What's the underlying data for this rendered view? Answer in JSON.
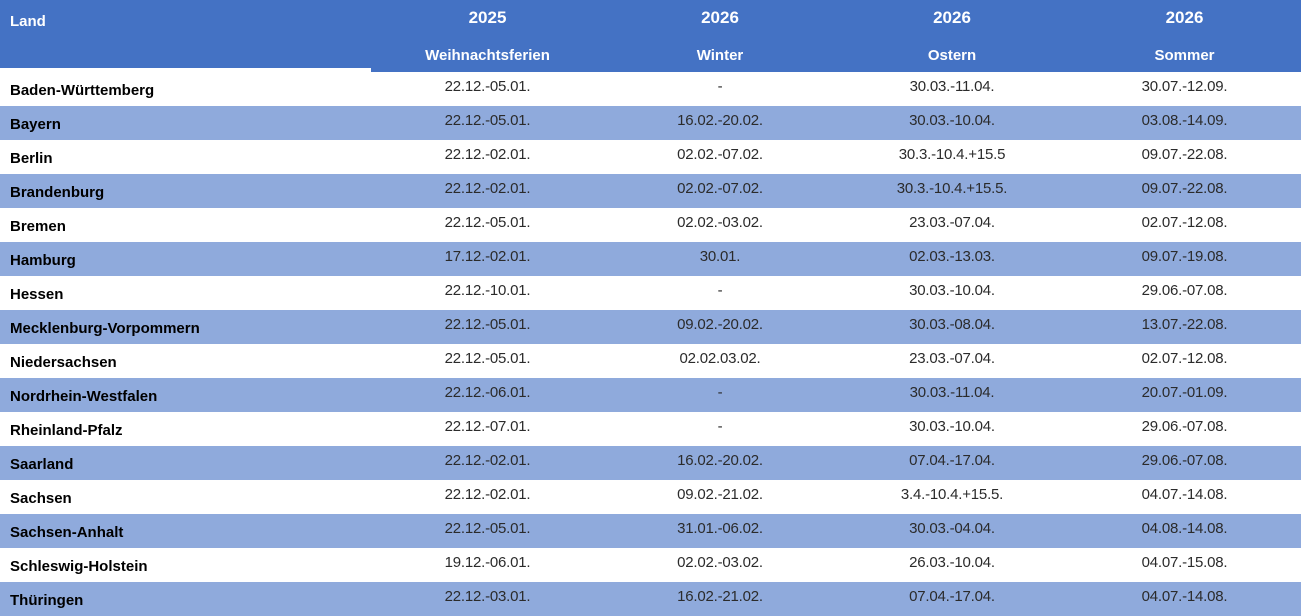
{
  "table": {
    "land_header": "Land",
    "columns": [
      {
        "key": "weihnachtsferien",
        "year": "2025",
        "label": "Weihnachtsferien"
      },
      {
        "key": "winter",
        "year": "2026",
        "label": "Winter"
      },
      {
        "key": "ostern",
        "year": "2026",
        "label": "Ostern"
      },
      {
        "key": "sommer",
        "year": "2026",
        "label": "Sommer"
      }
    ],
    "rows": [
      {
        "land": "Baden-Württemberg",
        "weihnachtsferien": "22.12.-05.01.",
        "winter": "-",
        "ostern": "30.03.-11.04.",
        "sommer": "30.07.-12.09."
      },
      {
        "land": "Bayern",
        "weihnachtsferien": "22.12.-05.01.",
        "winter": "16.02.-20.02.",
        "ostern": "30.03.-10.04.",
        "sommer": "03.08.-14.09."
      },
      {
        "land": "Berlin",
        "weihnachtsferien": "22.12.-02.01.",
        "winter": "02.02.-07.02.",
        "ostern": "30.3.-10.4.+15.5",
        "sommer": "09.07.-22.08."
      },
      {
        "land": "Brandenburg",
        "weihnachtsferien": "22.12.-02.01.",
        "winter": "02.02.-07.02.",
        "ostern": "30.3.-10.4.+15.5.",
        "sommer": "09.07.-22.08."
      },
      {
        "land": "Bremen",
        "weihnachtsferien": "22.12.-05.01.",
        "winter": "02.02.-03.02.",
        "ostern": "23.03.-07.04.",
        "sommer": "02.07.-12.08."
      },
      {
        "land": "Hamburg",
        "weihnachtsferien": "17.12.-02.01.",
        "winter": "30.01.",
        "ostern": "02.03.-13.03.",
        "sommer": "09.07.-19.08."
      },
      {
        "land": "Hessen",
        "weihnachtsferien": "22.12.-10.01.",
        "winter": "-",
        "ostern": "30.03.-10.04.",
        "sommer": "29.06.-07.08."
      },
      {
        "land": "Mecklenburg-Vorpommern",
        "weihnachtsferien": "22.12.-05.01.",
        "winter": "09.02.-20.02.",
        "ostern": "30.03.-08.04.",
        "sommer": "13.07.-22.08."
      },
      {
        "land": "Niedersachsen",
        "weihnachtsferien": "22.12.-05.01.",
        "winter": "02.02.03.02.",
        "ostern": "23.03.-07.04.",
        "sommer": "02.07.-12.08."
      },
      {
        "land": "Nordrhein-Westfalen",
        "weihnachtsferien": "22.12.-06.01.",
        "winter": "-",
        "ostern": "30.03.-11.04.",
        "sommer": "20.07.-01.09."
      },
      {
        "land": "Rheinland-Pfalz",
        "weihnachtsferien": "22.12.-07.01.",
        "winter": "-",
        "ostern": "30.03.-10.04.",
        "sommer": "29.06.-07.08."
      },
      {
        "land": "Saarland",
        "weihnachtsferien": "22.12.-02.01.",
        "winter": "16.02.-20.02.",
        "ostern": "07.04.-17.04.",
        "sommer": "29.06.-07.08."
      },
      {
        "land": "Sachsen",
        "weihnachtsferien": "22.12.-02.01.",
        "winter": "09.02.-21.02.",
        "ostern": "3.4.-10.4.+15.5.",
        "sommer": "04.07.-14.08."
      },
      {
        "land": "Sachsen-Anhalt",
        "weihnachtsferien": "22.12.-05.01.",
        "winter": "31.01.-06.02.",
        "ostern": "30.03.-04.04.",
        "sommer": "04.08.-14.08."
      },
      {
        "land": "Schleswig-Holstein",
        "weihnachtsferien": "19.12.-06.01.",
        "winter": "02.02.-03.02.",
        "ostern": "26.03.-10.04.",
        "sommer": "04.07.-15.08."
      },
      {
        "land": "Thüringen",
        "weihnachtsferien": "22.12.-03.01.",
        "winter": "16.02.-21.02.",
        "ostern": "07.04.-17.04.",
        "sommer": "04.07.-14.08."
      }
    ]
  },
  "colors": {
    "header_bg": "#4472C4",
    "band_bg": "#8FAADC",
    "header_text": "#FFFFFF",
    "land_text": "#000000",
    "date_text": "#2B2B2B"
  }
}
